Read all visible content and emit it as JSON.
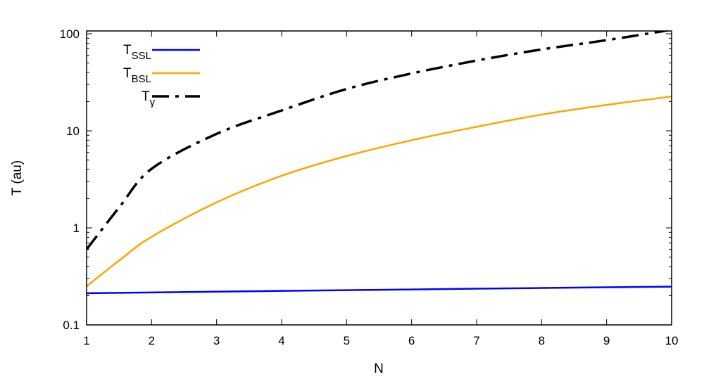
{
  "chart_data": {
    "type": "line",
    "title": "",
    "xlabel": "N",
    "ylabel": "T (au)",
    "xlim": [
      1,
      10
    ],
    "ylim": [
      0.1,
      107
    ],
    "yscale": "log",
    "grid": false,
    "legend_position": "top-left",
    "x_ticks": [
      "1",
      "2",
      "3",
      "4",
      "5",
      "6",
      "7",
      "8",
      "9",
      "10"
    ],
    "y_ticks": [
      "0.1",
      "1",
      "10",
      "100"
    ],
    "series": [
      {
        "name": "T",
        "subscript": "SSL",
        "color": "#0000ff",
        "dash": "solid",
        "x": [
          1,
          2,
          3,
          4,
          5,
          6,
          7,
          8,
          9,
          10
        ],
        "y": [
          0.212,
          0.216,
          0.22,
          0.224,
          0.228,
          0.232,
          0.236,
          0.24,
          0.244,
          0.248
        ]
      },
      {
        "name": "T",
        "subscript": "BSL",
        "color": "#ffa500",
        "dash": "solid",
        "x": [
          1,
          1.5,
          2,
          3,
          4,
          5,
          6,
          7,
          8,
          9,
          10
        ],
        "y": [
          0.25,
          0.46,
          0.81,
          1.83,
          3.44,
          5.5,
          8.0,
          11.0,
          14.7,
          18.5,
          22.6
        ]
      },
      {
        "name": "T",
        "subscript": "γ",
        "color": "#000000",
        "dash": "dash-dot",
        "x": [
          1,
          1.5,
          2,
          3,
          4,
          5,
          6,
          7,
          8,
          9,
          10
        ],
        "y": [
          0.6,
          1.62,
          4.06,
          9.3,
          16.2,
          27,
          39,
          53,
          69,
          86,
          110
        ]
      }
    ]
  }
}
